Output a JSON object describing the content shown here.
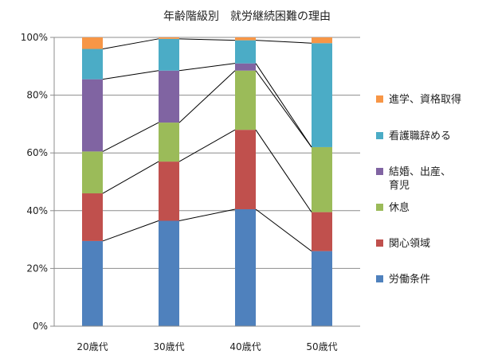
{
  "chart_data": {
    "type": "bar",
    "stacked": true,
    "percent": true,
    "title": "年齢階級別　就労継続困難の理由",
    "categories": [
      "20歳代",
      "30歳代",
      "40歳代",
      "50歳代"
    ],
    "y_ticks": [
      "0%",
      "20%",
      "40%",
      "60%",
      "80%",
      "100%"
    ],
    "ylim": [
      0,
      100
    ],
    "grid": true,
    "legend_position": "right",
    "series": [
      {
        "name": "労働条件",
        "color": "#4f81bd",
        "values": [
          29.5,
          36.5,
          40.5,
          26.0
        ]
      },
      {
        "name": "関心領域",
        "color": "#c0504d",
        "values": [
          16.5,
          20.5,
          27.5,
          13.5
        ]
      },
      {
        "name": "休息",
        "color": "#9bbb59",
        "values": [
          14.5,
          13.5,
          20.5,
          22.5
        ]
      },
      {
        "name": "結婚、出産、育児",
        "color": "#8064a2",
        "values": [
          25.0,
          18.0,
          2.5,
          0.0
        ]
      },
      {
        "name": "看護職辞める",
        "color": "#4bacc6",
        "values": [
          10.5,
          11.0,
          8.0,
          36.0
        ]
      },
      {
        "name": "進学、資格取得",
        "color": "#f79646",
        "values": [
          4.0,
          0.5,
          1.0,
          2.0
        ]
      }
    ],
    "legend_order": [
      "進学、資格取得",
      "看護職辞める",
      "結婚、出産、育児",
      "休息",
      "関心領域",
      "労働条件"
    ],
    "legend_lines": {
      "結婚、出産、育児": [
        "結婚、出産、",
        "育児"
      ]
    }
  }
}
